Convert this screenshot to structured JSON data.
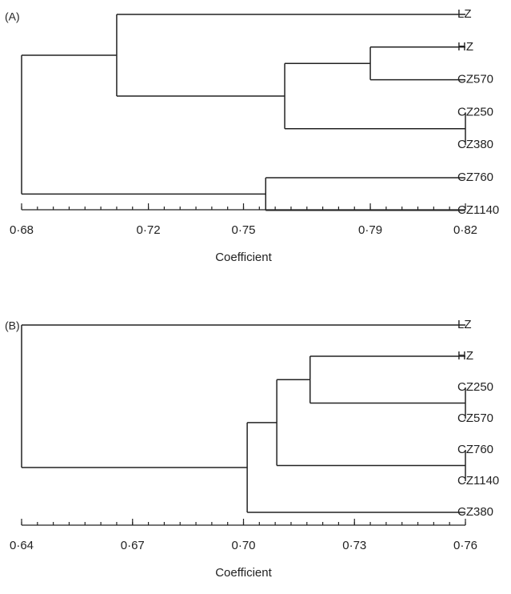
{
  "chart_data": [
    {
      "type": "dendrogram",
      "panel_label": "(A)",
      "xlabel": "Coefficient",
      "xlim": [
        0.68,
        0.82
      ],
      "ticks": [
        0.68,
        0.72,
        0.75,
        0.79,
        0.82
      ],
      "tick_labels": [
        "0·68",
        "0·72",
        "0·75",
        "0·79",
        "0·82"
      ],
      "leaves": [
        "LZ",
        "HZ",
        "CZ570",
        "CZ250",
        "CZ380",
        "CZ760",
        "CZ1140"
      ],
      "merges": [
        {
          "a": "CZ250",
          "b": "CZ380",
          "height": 0.82
        },
        {
          "a": "HZ",
          "b": "CZ570",
          "height": 0.79
        },
        {
          "a": "HZ+CZ570",
          "b": "CZ250+CZ380",
          "height": 0.763
        },
        {
          "a": "CZ760",
          "b": "CZ1140",
          "height": 0.757
        },
        {
          "a": "LZ",
          "b": "HZ+CZ570+CZ250+CZ380",
          "height": 0.71
        },
        {
          "a": "LZ+HZ+CZ570+CZ250+CZ380",
          "b": "CZ760+CZ1140",
          "height": 0.68
        }
      ]
    },
    {
      "type": "dendrogram",
      "panel_label": "(B)",
      "xlabel": "Coefficient",
      "xlim": [
        0.64,
        0.76
      ],
      "ticks": [
        0.64,
        0.67,
        0.7,
        0.73,
        0.76
      ],
      "tick_labels": [
        "0·64",
        "0·67",
        "0·70",
        "0·73",
        "0·76"
      ],
      "leaves": [
        "LZ",
        "HZ",
        "CZ250",
        "CZ570",
        "CZ760",
        "CZ1140",
        "CZ380"
      ],
      "merges": [
        {
          "a": "CZ250",
          "b": "CZ570",
          "height": 0.76
        },
        {
          "a": "CZ760",
          "b": "CZ1140",
          "height": 0.76
        },
        {
          "a": "HZ",
          "b": "CZ250+CZ570",
          "height": 0.718
        },
        {
          "a": "HZ+CZ250+CZ570",
          "b": "CZ760+CZ1140",
          "height": 0.709
        },
        {
          "a": "HZ+CZ250+CZ570+CZ760+CZ1140",
          "b": "CZ380",
          "height": 0.701
        },
        {
          "a": "LZ",
          "b": "HZ+CZ250+CZ570+CZ760+CZ1140+CZ380",
          "height": 0.64
        }
      ]
    }
  ]
}
